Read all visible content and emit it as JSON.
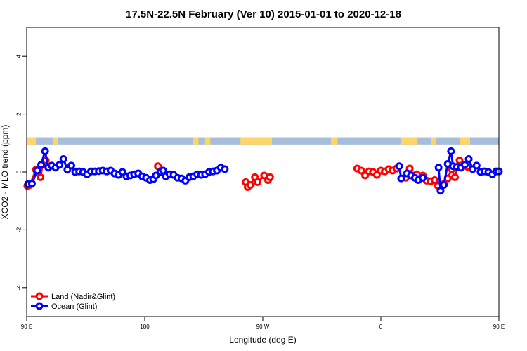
{
  "chart_data": {
    "type": "line",
    "title": "17.5N-22.5N February (Ver 10)   2015-01-01 to 2020-12-18",
    "xlabel": "Longitude (deg E)",
    "ylabel": "XCO2 - MLO trend (ppm)",
    "xlim": [
      90,
      450
    ],
    "ylim": [
      -5,
      5
    ],
    "x_ticks": [
      {
        "value": 90,
        "label": "90 E"
      },
      {
        "value": 180,
        "label": "180"
      },
      {
        "value": 270,
        "label": "90 W"
      },
      {
        "value": 360,
        "label": "0"
      },
      {
        "value": 450,
        "label": "90 E"
      },
      {
        "value": 540,
        "label": "180"
      }
    ],
    "y_ticks": [
      -4,
      -2,
      0,
      2,
      4
    ],
    "y_tick_labels": [
      "-4",
      "-2",
      "0",
      "2",
      "4"
    ],
    "legend_position": "bottom-left",
    "land_strip": {
      "y_range": [
        0.95,
        1.2
      ],
      "ocean_color": "#a6bddb",
      "land_color": "#fdd66a"
    },
    "series": [
      {
        "name": "Land (Nadir&Glint)",
        "color": "#ff0000",
        "segments": [
          [
            [
              90.5,
              -0.48
            ],
            [
              92.5,
              -0.45
            ],
            [
              97,
              0.08
            ],
            [
              100.5,
              -0.18
            ],
            [
              102,
              0.25
            ],
            [
              104.5,
              0.4
            ]
          ],
          [
            [
              190,
              0.2
            ]
          ],
          [
            [
              257,
              -0.35
            ],
            [
              258.5,
              -0.52
            ],
            [
              260.5,
              -0.45
            ],
            [
              264,
              -0.18
            ],
            [
              266,
              -0.35
            ],
            [
              271,
              -0.12
            ],
            [
              274,
              -0.28
            ],
            [
              275.5,
              -0.18
            ]
          ],
          [
            [
              342,
              0.12
            ],
            [
              345,
              0.05
            ],
            [
              348,
              -0.12
            ],
            [
              351,
              0.02
            ],
            [
              354,
              0.0
            ],
            [
              357,
              -0.1
            ],
            [
              360,
              0.05
            ],
            [
              363,
              0.02
            ],
            [
              366,
              0.1
            ],
            [
              369,
              0.05
            ],
            [
              372,
              0.12
            ]
          ],
          [
            [
              379,
              -0.2
            ],
            [
              382,
              0.12
            ],
            [
              385,
              -0.12
            ],
            [
              387.5,
              -0.08
            ],
            [
              392,
              -0.12
            ],
            [
              395,
              -0.3
            ],
            [
              398,
              -0.32
            ],
            [
              401,
              -0.28
            ],
            [
              403.5,
              -0.48
            ]
          ],
          [
            [
              408,
              -0.42
            ],
            [
              411,
              -0.22
            ],
            [
              414,
              0.1
            ],
            [
              416.5,
              -0.18
            ],
            [
              420,
              0.4
            ],
            [
              423,
              0.22
            ],
            [
              426,
              0.18
            ]
          ]
        ]
      },
      {
        "name": "Ocean (Glint)",
        "color": "#0000ff",
        "segments": [
          [
            [
              91,
              -0.42
            ],
            [
              94,
              -0.4
            ],
            [
              98,
              0.05
            ],
            [
              101,
              0.25
            ],
            [
              104,
              0.72
            ],
            [
              106.5,
              0.15
            ],
            [
              109,
              0.22
            ],
            [
              112,
              0.15
            ],
            [
              115,
              0.25
            ],
            [
              118,
              0.45
            ],
            [
              121,
              0.08
            ],
            [
              124,
              0.22
            ],
            [
              127,
              0.0
            ],
            [
              130,
              0.02
            ],
            [
              133,
              0.0
            ],
            [
              136,
              -0.08
            ],
            [
              139,
              0.02
            ],
            [
              142,
              0.02
            ],
            [
              145,
              0.03
            ],
            [
              148,
              0.05
            ],
            [
              151,
              0.02
            ],
            [
              154,
              0.05
            ],
            [
              157,
              -0.05
            ],
            [
              160,
              -0.1
            ],
            [
              163,
              0.0
            ],
            [
              166,
              -0.15
            ],
            [
              169,
              -0.12
            ],
            [
              172,
              -0.08
            ],
            [
              175,
              -0.05
            ],
            [
              178,
              -0.15
            ],
            [
              181,
              -0.2
            ],
            [
              184,
              -0.28
            ],
            [
              186.5,
              -0.25
            ],
            [
              188.5,
              -0.12
            ],
            [
              192,
              0.0
            ],
            [
              194,
              0.05
            ],
            [
              196,
              -0.15
            ],
            [
              199,
              -0.08
            ],
            [
              202,
              -0.1
            ],
            [
              205,
              -0.2
            ],
            [
              208,
              -0.22
            ],
            [
              211,
              -0.3
            ],
            [
              214,
              -0.18
            ],
            [
              217,
              -0.15
            ],
            [
              220,
              -0.08
            ],
            [
              223,
              -0.1
            ],
            [
              226,
              -0.08
            ],
            [
              229,
              0.0
            ],
            [
              232,
              0.02
            ],
            [
              235,
              0.05
            ],
            [
              238,
              0.15
            ],
            [
              241,
              0.1
            ]
          ],
          [
            [
              374,
              0.2
            ],
            [
              375.5,
              -0.22
            ]
          ],
          [
            [
              380,
              -0.05
            ],
            [
              383,
              -0.12
            ],
            [
              386,
              -0.2
            ],
            [
              388.5,
              -0.28
            ],
            [
              392,
              -0.2
            ]
          ],
          [
            [
              404,
              0.15
            ],
            [
              405.5,
              -0.65
            ],
            [
              408,
              -0.45
            ],
            [
              411,
              0.28
            ],
            [
              413.5,
              0.72
            ],
            [
              415,
              0.2
            ],
            [
              418,
              0.18
            ],
            [
              421,
              0.15
            ],
            [
              424,
              0.25
            ],
            [
              427,
              0.45
            ],
            [
              430,
              0.1
            ],
            [
              433,
              0.22
            ],
            [
              436,
              0.0
            ],
            [
              439,
              0.02
            ],
            [
              442,
              0.0
            ],
            [
              445,
              -0.08
            ],
            [
              448,
              0.02
            ],
            [
              450,
              0.02
            ]
          ]
        ]
      }
    ]
  }
}
